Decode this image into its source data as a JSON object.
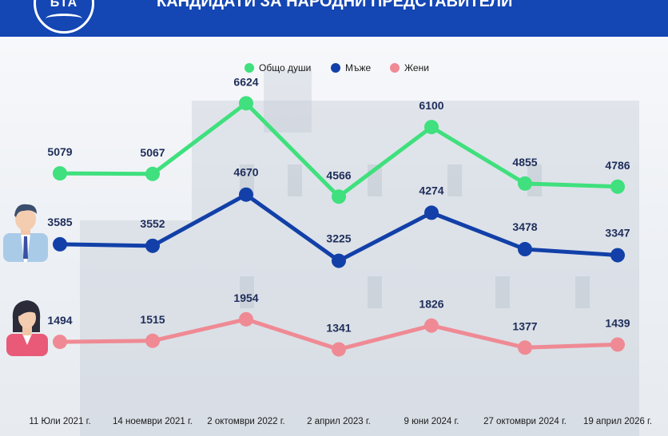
{
  "header": {
    "title": "КАНДИДАТИ ЗА НАРОДНИ ПРЕДСТАВИТЕЛИ",
    "logo_text": "БТА"
  },
  "colors": {
    "header_bg": "#1446b4",
    "total": "#3fe07d",
    "men": "#1240a8",
    "women": "#ef8a94"
  },
  "icons": [
    "man-avatar-icon",
    "woman-avatar-icon"
  ],
  "chart_data": {
    "type": "line",
    "title": "КАНДИДАТИ ЗА НАРОДНИ ПРЕДСТАВИТЕЛИ",
    "categories": [
      "11 Юли 2021 г.",
      "14 ноември 2021 г.",
      "2 октомври 2022 г.",
      "2 април 2023 г.",
      "9 юни 2024 г.",
      "27 октомври 2024 г.",
      "19 април 2026 г."
    ],
    "series": [
      {
        "name": "Общо души",
        "key": "total",
        "values": [
          5079,
          5067,
          6624,
          4566,
          6100,
          4855,
          4786
        ]
      },
      {
        "name": "Мъже",
        "key": "men",
        "values": [
          3585,
          3552,
          4670,
          3225,
          4274,
          3478,
          3347
        ]
      },
      {
        "name": "Жени",
        "key": "women",
        "values": [
          1494,
          1515,
          1954,
          1341,
          1826,
          1377,
          1439
        ]
      }
    ],
    "legend_position": "top-center",
    "grid": false
  }
}
